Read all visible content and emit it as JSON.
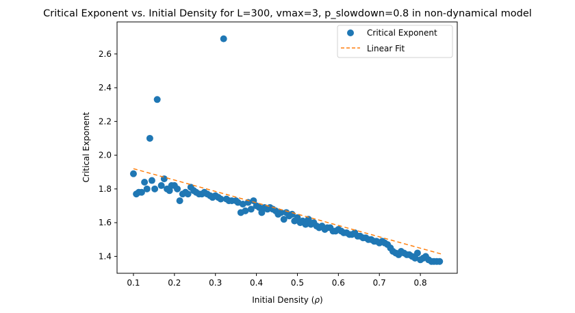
{
  "chart_data": {
    "type": "scatter",
    "title": "Critical Exponent vs. Initial Density for L=300, vmax=3, p_slowdown=0.8 in non-dynamical model",
    "xlabel": "Initial Density (",
    "xlabel_symbol": "ρ",
    "xlabel_close": ")",
    "ylabel": "Critical Exponent",
    "xlim": [
      0.06,
      0.89
    ],
    "ylim": [
      1.3,
      2.79
    ],
    "xticks": [
      0.1,
      0.2,
      0.3,
      0.4,
      0.5,
      0.6,
      0.7,
      0.8
    ],
    "yticks": [
      1.4,
      1.6,
      1.8,
      2.0,
      2.2,
      2.4,
      2.6
    ],
    "xtick_labels": [
      "0.1",
      "0.2",
      "0.3",
      "0.4",
      "0.5",
      "0.6",
      "0.7",
      "0.8"
    ],
    "ytick_labels": [
      "1.4",
      "1.6",
      "1.8",
      "2.0",
      "2.2",
      "2.4",
      "2.6"
    ],
    "grid": false,
    "legend_position": "top-right",
    "series": [
      {
        "name": "Critical Exponent",
        "kind": "scatter",
        "color": "#1f77b4",
        "x": [
          0.1,
          0.107,
          0.113,
          0.12,
          0.127,
          0.133,
          0.14,
          0.145,
          0.152,
          0.158,
          0.168,
          0.175,
          0.182,
          0.188,
          0.193,
          0.2,
          0.207,
          0.213,
          0.22,
          0.227,
          0.233,
          0.24,
          0.247,
          0.253,
          0.26,
          0.267,
          0.273,
          0.28,
          0.287,
          0.293,
          0.3,
          0.307,
          0.313,
          0.32,
          0.327,
          0.333,
          0.34,
          0.35,
          0.355,
          0.362,
          0.367,
          0.373,
          0.38,
          0.387,
          0.393,
          0.4,
          0.407,
          0.413,
          0.42,
          0.427,
          0.433,
          0.44,
          0.447,
          0.453,
          0.46,
          0.467,
          0.473,
          0.48,
          0.487,
          0.493,
          0.5,
          0.507,
          0.513,
          0.52,
          0.527,
          0.533,
          0.54,
          0.547,
          0.553,
          0.56,
          0.567,
          0.573,
          0.58,
          0.587,
          0.593,
          0.6,
          0.607,
          0.613,
          0.62,
          0.627,
          0.633,
          0.64,
          0.647,
          0.653,
          0.66,
          0.667,
          0.673,
          0.68,
          0.687,
          0.693,
          0.7,
          0.707,
          0.713,
          0.72,
          0.727,
          0.733,
          0.74,
          0.747,
          0.753,
          0.76,
          0.767,
          0.773,
          0.78,
          0.787,
          0.793,
          0.8,
          0.807,
          0.813,
          0.82,
          0.827,
          0.833,
          0.84,
          0.847
        ],
        "y": [
          1.89,
          1.77,
          1.78,
          1.78,
          1.84,
          1.8,
          2.1,
          1.85,
          1.8,
          2.33,
          1.82,
          1.86,
          1.8,
          1.79,
          1.82,
          1.82,
          1.8,
          1.73,
          1.77,
          1.78,
          1.77,
          1.81,
          1.79,
          1.78,
          1.77,
          1.77,
          1.78,
          1.77,
          1.76,
          1.75,
          1.76,
          1.75,
          1.74,
          2.69,
          1.74,
          1.73,
          1.73,
          1.73,
          1.72,
          1.66,
          1.71,
          1.67,
          1.72,
          1.68,
          1.73,
          1.7,
          1.69,
          1.66,
          1.69,
          1.68,
          1.69,
          1.68,
          1.67,
          1.65,
          1.66,
          1.62,
          1.66,
          1.64,
          1.65,
          1.61,
          1.63,
          1.6,
          1.61,
          1.59,
          1.62,
          1.59,
          1.6,
          1.58,
          1.57,
          1.58,
          1.56,
          1.57,
          1.57,
          1.55,
          1.55,
          1.56,
          1.55,
          1.54,
          1.54,
          1.53,
          1.53,
          1.54,
          1.52,
          1.52,
          1.51,
          1.51,
          1.5,
          1.5,
          1.49,
          1.49,
          1.48,
          1.49,
          1.48,
          1.47,
          1.45,
          1.43,
          1.42,
          1.41,
          1.43,
          1.42,
          1.41,
          1.41,
          1.4,
          1.39,
          1.42,
          1.38,
          1.39,
          1.4,
          1.38,
          1.37,
          1.37,
          1.37,
          1.37
        ]
      },
      {
        "name": "Linear Fit",
        "kind": "line",
        "style": "dashed",
        "color": "#ff7f0e",
        "x": [
          0.1,
          0.85
        ],
        "y": [
          1.92,
          1.415
        ]
      }
    ]
  }
}
